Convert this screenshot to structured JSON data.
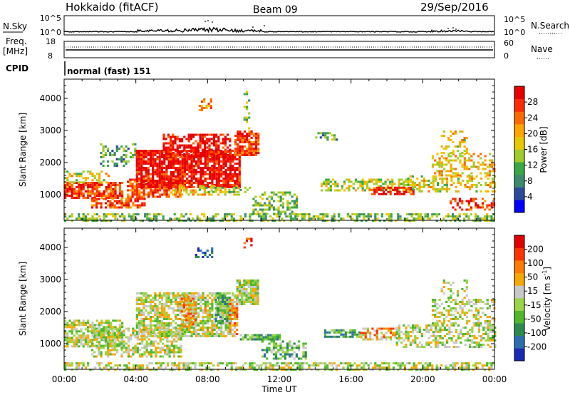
{
  "header": {
    "station": "Hokkaido (fitACF)",
    "beam": "Beam 09",
    "date": "29/Sep/2016"
  },
  "nsky_panel": {
    "label": "N.Sky",
    "left_ticks": [
      "10^5",
      "10^0"
    ],
    "right_ticks": [
      "10^5",
      "10^0"
    ],
    "right_label": "N.Search"
  },
  "freq_panel": {
    "label_line1": "Freq.",
    "label_line2": "[MHz]",
    "left_ticks": [
      "18",
      "8"
    ],
    "right_ticks": [
      "60",
      "0"
    ],
    "right_label": "Nave"
  },
  "cpid_panel": {
    "label": "CPID",
    "mode_text": "normal (fast) 151"
  },
  "x_axis": {
    "label": "Time UT",
    "ticks": [
      "00:00",
      "04:00",
      "08:00",
      "12:00",
      "16:00",
      "20:00",
      "00:00"
    ]
  },
  "chart_data": [
    {
      "type": "heatmap",
      "name": "power",
      "ylabel": "Slant Range [km]",
      "yticks": [
        "1000",
        "2000",
        "3000",
        "4000"
      ],
      "ylim": [
        200,
        4600
      ],
      "xlim_hours": [
        0,
        24
      ],
      "colorbar": {
        "label": "Power [dB]",
        "ticks": [
          "4",
          "8",
          "12",
          "16",
          "20",
          "24",
          "28"
        ],
        "colors": [
          "#0000ff",
          "#2c4a9c",
          "#3d8a6e",
          "#3aa845",
          "#9fcc29",
          "#e8c800",
          "#ffa500",
          "#ff6a00",
          "#ff2a00",
          "#e80000"
        ]
      },
      "echo_regions": [
        {
          "t0": 0.0,
          "t1": 24.0,
          "r0": 200,
          "r1": 420,
          "level": 0.4,
          "density": 0.55
        },
        {
          "t0": 0.0,
          "t1": 3.2,
          "r0": 900,
          "r1": 1400,
          "level": 0.85,
          "density": 0.8
        },
        {
          "t0": 0.0,
          "t1": 2.5,
          "r0": 1400,
          "r1": 1750,
          "level": 0.55,
          "density": 0.5
        },
        {
          "t0": 1.5,
          "t1": 4.5,
          "r0": 600,
          "r1": 900,
          "level": 0.8,
          "density": 0.7
        },
        {
          "t0": 2.0,
          "t1": 4.0,
          "r0": 1900,
          "r1": 2600,
          "level": 0.35,
          "density": 0.35
        },
        {
          "t0": 3.5,
          "t1": 6.5,
          "r0": 900,
          "r1": 1500,
          "level": 0.8,
          "density": 0.7
        },
        {
          "t0": 4.0,
          "t1": 9.8,
          "r0": 1200,
          "r1": 2400,
          "level": 0.95,
          "density": 0.85
        },
        {
          "t0": 5.5,
          "t1": 9.2,
          "r0": 2200,
          "r1": 2900,
          "level": 0.95,
          "density": 0.65
        },
        {
          "t0": 6.0,
          "t1": 9.8,
          "r0": 1000,
          "r1": 1300,
          "level": 0.6,
          "density": 0.45
        },
        {
          "t0": 7.5,
          "t1": 8.2,
          "r0": 3600,
          "r1": 4000,
          "level": 0.7,
          "density": 0.35
        },
        {
          "t0": 9.5,
          "t1": 10.8,
          "r0": 2200,
          "r1": 3000,
          "level": 0.85,
          "density": 0.8
        },
        {
          "t0": 10.0,
          "t1": 10.3,
          "r0": 3000,
          "r1": 4300,
          "level": 0.4,
          "density": 0.3
        },
        {
          "t0": 7.5,
          "t1": 10.5,
          "r0": 1050,
          "r1": 1250,
          "level": 0.4,
          "density": 0.55
        },
        {
          "t0": 10.5,
          "t1": 13.0,
          "r0": 400,
          "r1": 1100,
          "level": 0.4,
          "density": 0.5
        },
        {
          "t0": 14.0,
          "t1": 15.2,
          "r0": 2700,
          "r1": 2950,
          "level": 0.35,
          "density": 0.4
        },
        {
          "t0": 14.3,
          "t1": 19.5,
          "r0": 1100,
          "r1": 1500,
          "level": 0.5,
          "density": 0.6
        },
        {
          "t0": 17.0,
          "t1": 19.5,
          "r0": 1000,
          "r1": 1250,
          "level": 0.95,
          "density": 0.6
        },
        {
          "t0": 19.0,
          "t1": 24.0,
          "r0": 1100,
          "r1": 1600,
          "level": 0.55,
          "density": 0.45
        },
        {
          "t0": 20.5,
          "t1": 24.0,
          "r0": 1600,
          "r1": 2300,
          "level": 0.6,
          "density": 0.4
        },
        {
          "t0": 21.0,
          "t1": 22.5,
          "r0": 2300,
          "r1": 3000,
          "level": 0.55,
          "density": 0.3
        },
        {
          "t0": 21.5,
          "t1": 24.0,
          "r0": 500,
          "r1": 900,
          "level": 0.85,
          "density": 0.45
        }
      ]
    },
    {
      "type": "heatmap",
      "name": "velocity",
      "ylabel": "Slant Range [km]",
      "yticks": [
        "1000",
        "2000",
        "3000",
        "4000"
      ],
      "ylim": [
        200,
        4600
      ],
      "xlim_hours": [
        0,
        24
      ],
      "colorbar": {
        "label": "Velocity [m s^-1]",
        "ticks": [
          "200",
          "100",
          "50",
          "15",
          "-15",
          "-50",
          "-100",
          "-200"
        ],
        "colors": [
          "#1a2ab5",
          "#2c6fb0",
          "#2d8a4e",
          "#4fb82d",
          "#9bd446",
          "#c8c8c8",
          "#f5a800",
          "#ff7a00",
          "#ff3300",
          "#e00000"
        ]
      },
      "echo_regions": [
        {
          "t0": 0.0,
          "t1": 24.0,
          "r0": 200,
          "r1": 420,
          "level": 0.5,
          "density": 0.55
        },
        {
          "t0": 0.0,
          "t1": 3.2,
          "r0": 900,
          "r1": 1750,
          "level": 0.5,
          "density": 0.7
        },
        {
          "t0": 1.5,
          "t1": 6.5,
          "r0": 600,
          "r1": 1500,
          "level": 0.5,
          "density": 0.6
        },
        {
          "t0": 4.0,
          "t1": 9.5,
          "r0": 1200,
          "r1": 2600,
          "level": 0.52,
          "density": 0.7
        },
        {
          "t0": 6.5,
          "t1": 7.3,
          "r0": 1500,
          "r1": 2500,
          "level": 0.65,
          "density": 0.7
        },
        {
          "t0": 8.4,
          "t1": 9.2,
          "r0": 1600,
          "r1": 2600,
          "level": 0.35,
          "density": 0.7
        },
        {
          "t0": 9.2,
          "t1": 9.6,
          "r0": 1300,
          "r1": 2400,
          "level": 0.7,
          "density": 0.7
        },
        {
          "t0": 9.6,
          "t1": 10.8,
          "r0": 2200,
          "r1": 3000,
          "level": 0.5,
          "density": 0.8
        },
        {
          "t0": 7.3,
          "t1": 8.2,
          "r0": 3700,
          "r1": 4000,
          "level": 0.05,
          "density": 0.35
        },
        {
          "t0": 10.0,
          "t1": 10.5,
          "r0": 3900,
          "r1": 4300,
          "level": 0.9,
          "density": 0.3
        },
        {
          "t0": 9.8,
          "t1": 12.0,
          "r0": 1150,
          "r1": 1300,
          "level": 0.35,
          "density": 0.8
        },
        {
          "t0": 11.0,
          "t1": 13.5,
          "r0": 500,
          "r1": 1100,
          "level": 0.35,
          "density": 0.55
        },
        {
          "t0": 14.5,
          "t1": 16.5,
          "r0": 1200,
          "r1": 1450,
          "level": 0.3,
          "density": 0.65
        },
        {
          "t0": 16.5,
          "t1": 18.5,
          "r0": 1100,
          "r1": 1500,
          "level": 0.65,
          "density": 0.6
        },
        {
          "t0": 18.5,
          "t1": 24.0,
          "r0": 900,
          "r1": 1600,
          "level": 0.5,
          "density": 0.5
        },
        {
          "t0": 20.5,
          "t1": 24.0,
          "r0": 1600,
          "r1": 2400,
          "level": 0.52,
          "density": 0.45
        },
        {
          "t0": 21.0,
          "t1": 22.5,
          "r0": 2400,
          "r1": 3000,
          "level": 0.5,
          "density": 0.3
        }
      ]
    }
  ]
}
